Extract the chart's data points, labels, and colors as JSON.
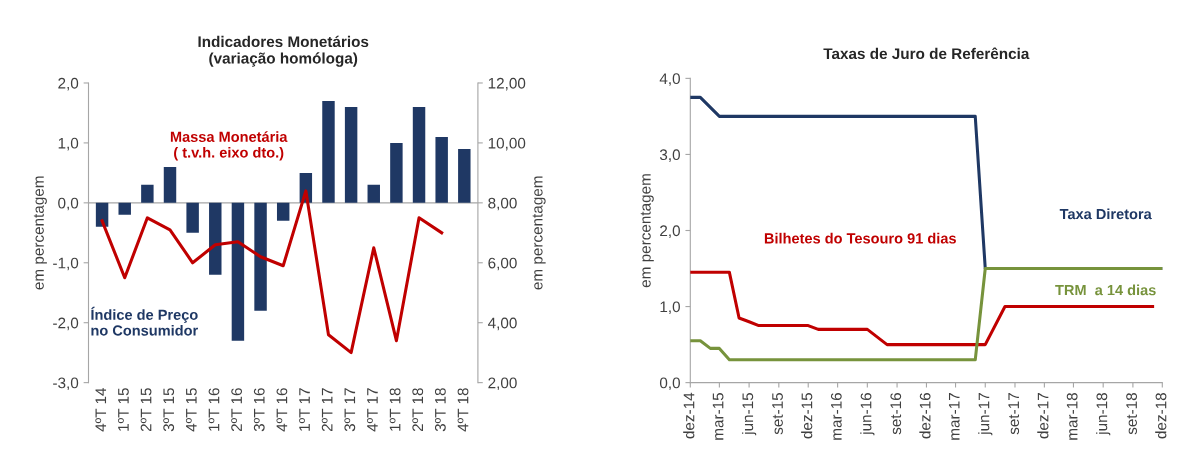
{
  "chart_data": [
    {
      "type": "bar",
      "title": "Indicadores Monetários\n(variação homóloga)",
      "ylabel": "em percentagem",
      "y2label": "em percentagem",
      "categories": [
        "4ºT 14",
        "1ºT 15",
        "2ºT 15",
        "3ºT 15",
        "4ºT 15",
        "1ºT 16",
        "2ºT 16",
        "3ºT 16",
        "4ºT 16",
        "1ºT 17",
        "2ºT 17",
        "3ºT 17",
        "4ºT 17",
        "1ºT 18",
        "2ºT 18",
        "3ºT 18",
        "4ºT 18"
      ],
      "series": [
        {
          "name": "Índice de Preço\nno Consumidor",
          "color": "#1f3864",
          "values": [
            -0.4,
            -0.2,
            0.3,
            0.6,
            -0.5,
            -1.2,
            -2.3,
            -1.8,
            -0.3,
            0.5,
            1.7,
            1.6,
            0.3,
            1.0,
            1.6,
            1.1,
            0.9
          ]
        },
        {
          "name": "Massa Monetária\n( t.v.h. eixo dto.)",
          "type": "line",
          "axis": "y2",
          "color": "#c00000",
          "values": [
            7.4,
            5.5,
            7.5,
            7.1,
            6.0,
            6.6,
            6.7,
            6.2,
            5.9,
            8.4,
            3.6,
            3.0,
            6.5,
            3.4,
            7.5,
            7.0,
            null
          ]
        }
      ],
      "ylim": [
        -3,
        2
      ],
      "yticks": [
        {
          "value": -3,
          "label": "-3,0"
        },
        {
          "value": -2,
          "label": "-2,0"
        },
        {
          "value": -1,
          "label": "-1,0"
        },
        {
          "value": 0,
          "label": "0,0"
        },
        {
          "value": 1,
          "label": "1,0"
        },
        {
          "value": 2,
          "label": "2,0"
        }
      ],
      "y2lim": [
        2,
        12
      ],
      "y2ticks": [
        {
          "value": 2,
          "label": "2,00"
        },
        {
          "value": 4,
          "label": "4,00"
        },
        {
          "value": 6,
          "label": "6,00"
        },
        {
          "value": 8,
          "label": "8,00"
        },
        {
          "value": 10,
          "label": "10,00"
        },
        {
          "value": 12,
          "label": "12,00"
        }
      ],
      "ref_lines": [
        {
          "axis": "y",
          "value": 0,
          "color": "#a6a6a6"
        }
      ],
      "grid": false,
      "legend": false
    },
    {
      "type": "line",
      "title": "Taxas de Juro de Referência",
      "ylabel": "em percentagem",
      "series": [
        {
          "name": "Taxa Diretora",
          "color": "#1f3864",
          "x": [
            "2014-12",
            "2015-01",
            "2015-03",
            "2017-05",
            "2017-06",
            "2018-12"
          ],
          "values": [
            3.75,
            3.75,
            3.5,
            3.5,
            1.5,
            1.5
          ]
        },
        {
          "name": "Bilhetes do Tesouro 91 dias",
          "color": "#c00000",
          "x": [
            "2014-12",
            "2015-04",
            "2015-05",
            "2015-06",
            "2015-07",
            "2015-12",
            "2016-01",
            "2016-06",
            "2016-08",
            "2017-05",
            "2017-06",
            "2017-08",
            "2018-11"
          ],
          "values": [
            1.45,
            1.45,
            0.85,
            0.8,
            0.75,
            0.75,
            0.7,
            0.7,
            0.5,
            0.5,
            0.5,
            1.0,
            1.0
          ]
        },
        {
          "name": "TRM  a 14 dias",
          "color": "#77933c",
          "x": [
            "2014-12",
            "2015-01",
            "2015-02",
            "2015-03",
            "2015-04",
            "2017-05",
            "2017-06",
            "2018-12"
          ],
          "values": [
            0.55,
            0.55,
            0.45,
            0.45,
            0.3,
            0.3,
            1.5,
            1.5
          ]
        }
      ],
      "xlim": [
        "2014-12",
        "2018-12"
      ],
      "xticks": [
        {
          "value": "2014-12",
          "label": "dez-14"
        },
        {
          "value": "2015-03",
          "label": "mar-15"
        },
        {
          "value": "2015-06",
          "label": "jun-15"
        },
        {
          "value": "2015-09",
          "label": "set-15"
        },
        {
          "value": "2015-12",
          "label": "dez-15"
        },
        {
          "value": "2016-03",
          "label": "mar-16"
        },
        {
          "value": "2016-06",
          "label": "jun-16"
        },
        {
          "value": "2016-09",
          "label": "set-16"
        },
        {
          "value": "2016-12",
          "label": "dez-16"
        },
        {
          "value": "2017-03",
          "label": "mar-17"
        },
        {
          "value": "2017-06",
          "label": "jun-17"
        },
        {
          "value": "2017-09",
          "label": "set-17"
        },
        {
          "value": "2017-12",
          "label": "dez-17"
        },
        {
          "value": "2018-03",
          "label": "mar-18"
        },
        {
          "value": "2018-06",
          "label": "jun-18"
        },
        {
          "value": "2018-09",
          "label": "set-18"
        },
        {
          "value": "2018-12",
          "label": "dez-18"
        }
      ],
      "ylim": [
        0,
        4
      ],
      "yticks": [
        {
          "value": 0,
          "label": "0,0"
        },
        {
          "value": 1,
          "label": "1,0"
        },
        {
          "value": 2,
          "label": "2,0"
        },
        {
          "value": 3,
          "label": "3,0"
        },
        {
          "value": 4,
          "label": "4,0"
        }
      ],
      "grid": false,
      "legend": false
    }
  ]
}
